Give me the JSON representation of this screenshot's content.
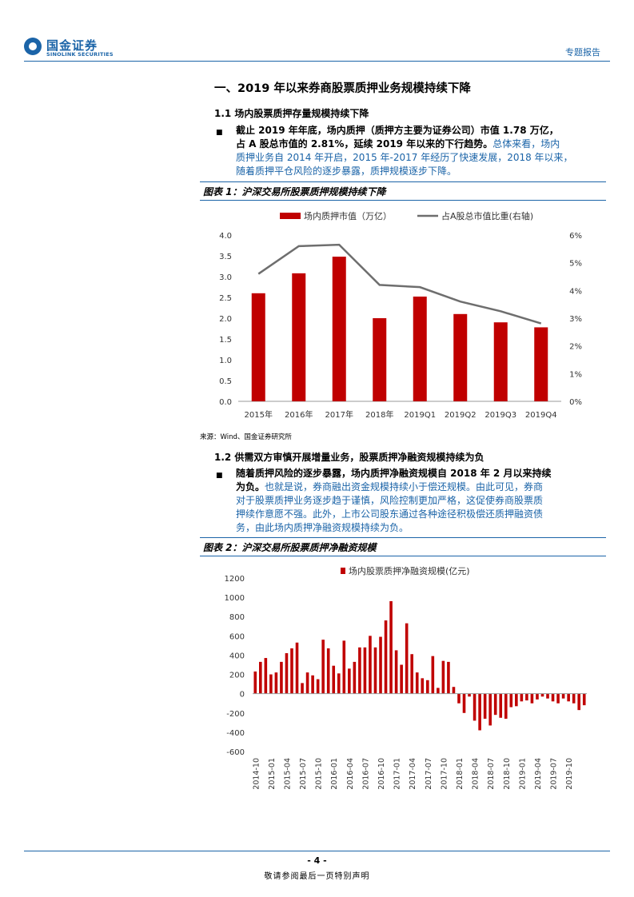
{
  "header": {
    "logo_cn": "国金证券",
    "logo_en": "SINOLINK SECURITIES",
    "report_type": "专题报告"
  },
  "section1": {
    "title": "一、2019 年以来券商股票质押业务规模持续下降",
    "sub1": {
      "title": "1.1  场内股票质押存量规模持续下降",
      "bullet": "■",
      "para_line1": "截止 2019 年年底，场内质押（质押方主要为证券公司）市值 1.78 万亿，",
      "para_line2_bold": "占 A 股总市值的 2.81%，延续 2019 年以来的下行趋势。",
      "para_line2_normal": "总体来看，场内",
      "para_line3": "质押业务自 2014 年开启，2015 年-2017 年经历了快速发展，2018 年以来，",
      "para_line4": "随着质押平仓风险的逐步暴露，质押规模逐步下降。"
    },
    "sub2": {
      "title": "1.2  供需双方审慎开展增量业务，股票质押净融资规模持续为负",
      "bullet": "■",
      "para_line1": "随着质押风险的逐步暴露，场内质押净融资规模自 2018 年 2 月以来持续",
      "para_line2_bold": "为负。",
      "para_line2_normal": "也就是说，券商融出资金规模持续小于偿还规模。由此可见，券商",
      "para_line3": "对于股票质押业务逐步趋于谨慎，风险控制更加严格，这促使券商股票质",
      "para_line4": "押续作意愿不强。此外，上市公司股东通过各种途径积极偿还质押融资债",
      "para_line5": "务，由此场内质押净融资规模持续为负。"
    }
  },
  "figure1": {
    "title": "图表 1：沪深交易所股票质押规模持续下降",
    "source": "来源：Wind、国金证券研究所"
  },
  "figure2": {
    "title": "图表 2：沪深交易所股票质押净融资规模"
  },
  "footer": {
    "page": "- 4 -",
    "disclaimer": "敬请参阅最后一页特别声明"
  },
  "colors": {
    "brand_blue": "#1b64a8",
    "bar_red": "#c00000",
    "line_gray": "#6e6e6e"
  },
  "chart_data": [
    {
      "type": "bar",
      "categories": [
        "2015年",
        "2016年",
        "2017年",
        "2018年",
        "2019Q1",
        "2019Q2",
        "2019Q3",
        "2019Q4"
      ],
      "series": [
        {
          "name": "场内质押市值（万亿）",
          "type": "bar",
          "axis": "left",
          "values": [
            2.6,
            3.08,
            3.48,
            2.0,
            2.52,
            2.1,
            1.9,
            1.78
          ]
        },
        {
          "name": "占A股总市值比重(右轴)",
          "type": "line",
          "axis": "right",
          "values": [
            4.6,
            5.6,
            5.65,
            4.2,
            4.12,
            3.6,
            3.25,
            2.81
          ]
        }
      ],
      "ylim": [
        0,
        4.0
      ],
      "yticks": [
        "0.0",
        "0.5",
        "1.0",
        "1.5",
        "2.0",
        "2.5",
        "3.0",
        "3.5",
        "4.0"
      ],
      "y2lim": [
        0,
        6
      ],
      "y2ticks": [
        "0%",
        "1%",
        "2%",
        "3%",
        "4%",
        "5%",
        "6%"
      ],
      "legend": "top"
    },
    {
      "type": "bar",
      "series": [
        {
          "name": "场内股票质押净融资规模(亿元)",
          "values": [
            230,
            330,
            370,
            200,
            220,
            330,
            420,
            470,
            530,
            110,
            220,
            190,
            150,
            560,
            470,
            290,
            210,
            550,
            260,
            330,
            480,
            480,
            600,
            480,
            590,
            760,
            960,
            450,
            300,
            730,
            410,
            220,
            160,
            140,
            390,
            60,
            340,
            330,
            70,
            -100,
            -200,
            -30,
            -280,
            -380,
            -260,
            -330,
            -220,
            -250,
            -260,
            -140,
            -130,
            -80,
            -70,
            -100,
            -60,
            -30,
            -50,
            -80,
            -100,
            -50,
            -80,
            -100,
            -170,
            -120
          ]
        }
      ],
      "xticks": [
        "2014-10",
        "2015-01",
        "2015-04",
        "2015-07",
        "2015-10",
        "2016-01",
        "2016-04",
        "2016-07",
        "2016-10",
        "2017-01",
        "2017-04",
        "2017-07",
        "2017-10",
        "2018-01",
        "2018-04",
        "2018-07",
        "2018-10",
        "2019-01",
        "2019-04",
        "2019-07",
        "2019-10"
      ],
      "ylim": [
        -600,
        1200
      ],
      "yticks": [
        "-600",
        "-400",
        "-200",
        "0",
        "200",
        "400",
        "600",
        "800",
        "1000",
        "1200"
      ],
      "legend": "top"
    }
  ]
}
